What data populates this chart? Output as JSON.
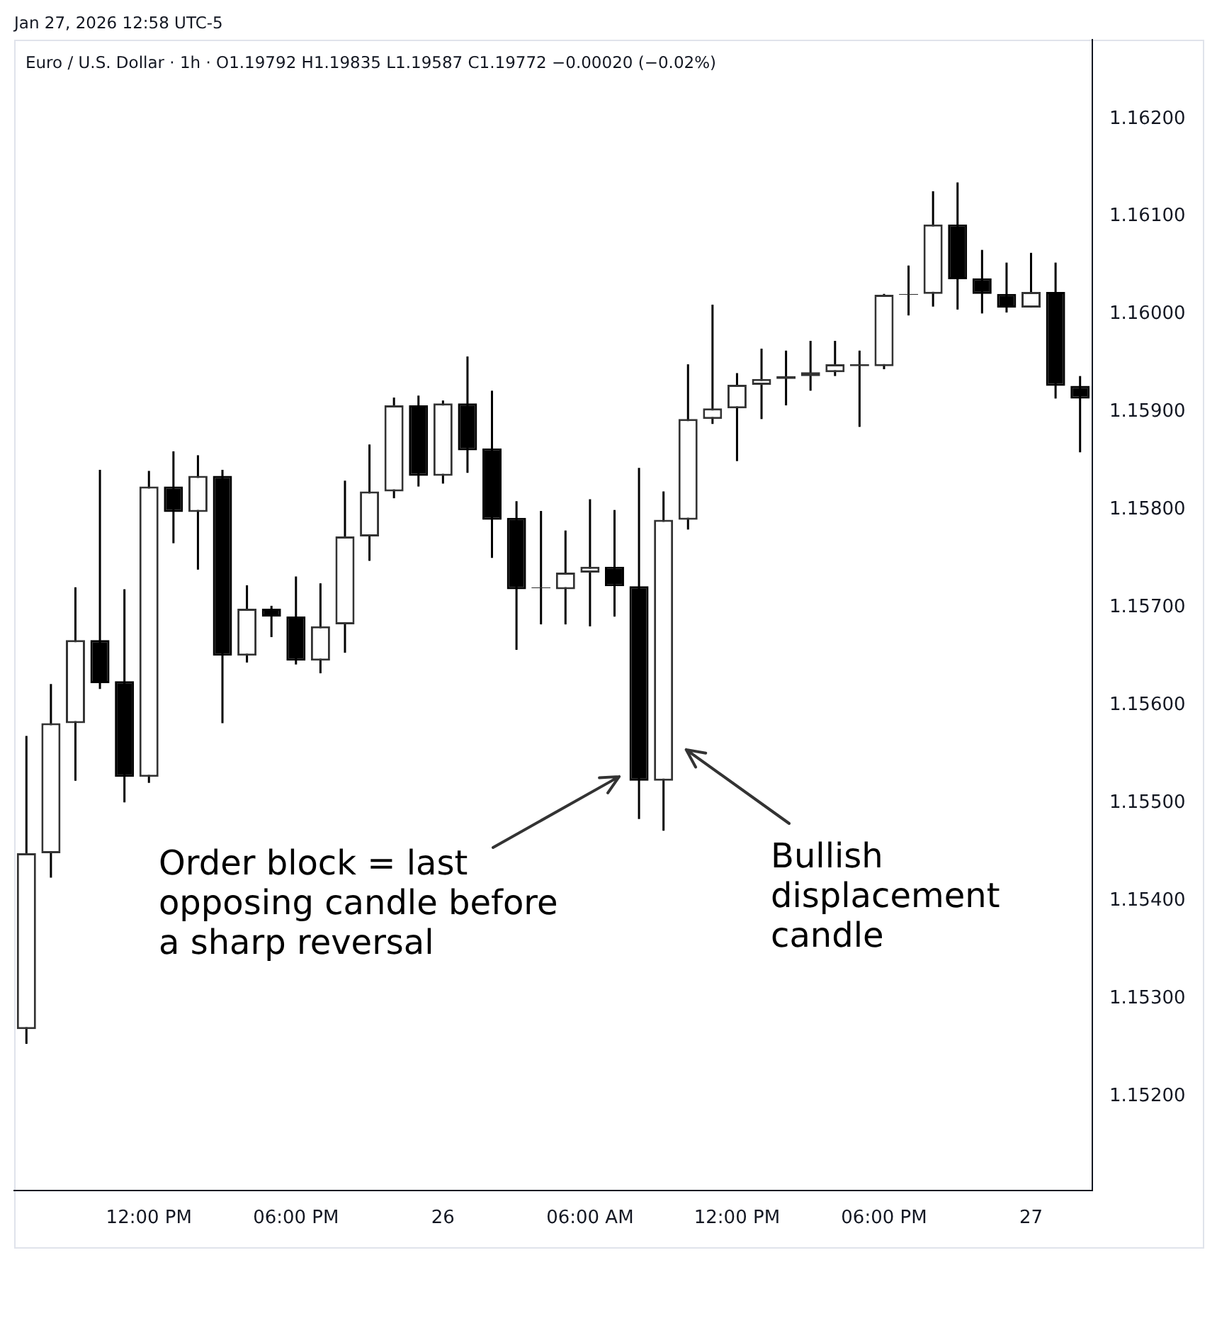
{
  "chart_data": {
    "type": "candlestick",
    "title": "Euro / U.S. Dollar · 1h · O1.19792  H1.19835  L1.19587  C1.19772  −0.00020 (−0.02%)",
    "subtitle": "Jan 27, 2026 12:58 UTC-5",
    "categories": [
      null,
      null,
      null,
      null,
      null,
      "12:00 PM",
      null,
      null,
      null,
      null,
      null,
      "06:00 PM",
      null,
      null,
      null,
      null,
      null,
      "26",
      null,
      null,
      null,
      null,
      null,
      "06:00 AM",
      null,
      null,
      null,
      null,
      null,
      "12:00 PM",
      null,
      null,
      null,
      null,
      null,
      "06:00 PM",
      null,
      null,
      null,
      null,
      null,
      "27",
      null,
      null
    ],
    "ohlc": [
      [
        1.15269,
        1.15569,
        1.15254,
        1.15449
      ],
      [
        1.15449,
        1.15622,
        1.15424,
        1.15582
      ],
      [
        1.15582,
        1.15721,
        1.15523,
        1.15667
      ],
      [
        1.15667,
        1.15841,
        1.15617,
        1.15623
      ],
      [
        1.15625,
        1.15719,
        1.15501,
        1.15527
      ],
      [
        1.15527,
        1.1584,
        1.15521,
        1.15824
      ],
      [
        1.15824,
        1.1586,
        1.15766,
        1.15798
      ],
      [
        1.15798,
        1.15856,
        1.15739,
        1.15835
      ],
      [
        1.15835,
        1.15841,
        1.15582,
        1.15651
      ],
      [
        1.15651,
        1.15723,
        1.15644,
        1.15699
      ],
      [
        1.15699,
        1.15702,
        1.1567,
        1.15691
      ],
      [
        1.15691,
        1.15732,
        1.15642,
        1.15646
      ],
      [
        1.15646,
        1.15725,
        1.15633,
        1.15681
      ],
      [
        1.15683,
        1.1583,
        1.15654,
        1.15773
      ],
      [
        1.15773,
        1.15867,
        1.15748,
        1.15819
      ],
      [
        1.15819,
        1.15915,
        1.15812,
        1.15907
      ],
      [
        1.15907,
        1.15917,
        1.15824,
        1.15835
      ],
      [
        1.15835,
        1.15912,
        1.15827,
        1.15909
      ],
      [
        1.15909,
        1.15957,
        1.15838,
        1.15861
      ],
      [
        1.15863,
        1.15922,
        1.15751,
        1.1579
      ],
      [
        1.15792,
        1.15809,
        1.15657,
        1.15719
      ],
      [
        1.1572,
        1.15799,
        1.15683,
        1.15721
      ],
      [
        1.15719,
        1.15779,
        1.15683,
        1.15736
      ],
      [
        1.15736,
        1.15811,
        1.15681,
        1.15742
      ],
      [
        1.15742,
        1.158,
        1.15691,
        1.15722
      ],
      [
        1.15722,
        1.15843,
        1.15484,
        1.15523
      ],
      [
        1.15523,
        1.15819,
        1.15472,
        1.1579
      ],
      [
        1.1579,
        1.15949,
        1.1578,
        1.15893
      ],
      [
        1.15893,
        1.1601,
        1.15888,
        1.15904
      ],
      [
        1.15904,
        1.1594,
        1.1585,
        1.15928
      ],
      [
        1.15928,
        1.15965,
        1.15893,
        1.15934
      ],
      [
        1.15934,
        1.15963,
        1.15907,
        1.15937
      ],
      [
        1.15937,
        1.15973,
        1.15922,
        1.15941
      ],
      [
        1.15941,
        1.15973,
        1.15937,
        1.15949
      ],
      [
        1.15947,
        1.15963,
        1.15885,
        1.15949
      ],
      [
        1.15947,
        1.16021,
        1.15944,
        1.1602
      ],
      [
        1.1602,
        1.1605,
        1.15999,
        1.16021
      ],
      [
        1.16021,
        1.16126,
        1.16008,
        1.16092
      ],
      [
        1.16092,
        1.16135,
        1.16005,
        1.16036
      ],
      [
        1.16037,
        1.16066,
        1.16001,
        1.16021
      ],
      [
        1.16021,
        1.16053,
        1.16002,
        1.16007
      ],
      [
        1.16007,
        1.16063,
        1.16007,
        1.16023
      ],
      [
        1.16023,
        1.16053,
        1.15914,
        1.15927
      ],
      [
        1.15927,
        1.15937,
        1.15859,
        1.15914
      ]
    ],
    "ylim": [
      1.15104,
      1.16281
    ],
    "yticks": [
      {
        "value": 1.152,
        "label": "1.15200"
      },
      {
        "value": 1.153,
        "label": "1.15300"
      },
      {
        "value": 1.154,
        "label": "1.15400"
      },
      {
        "value": 1.155,
        "label": "1.15500"
      },
      {
        "value": 1.156,
        "label": "1.15600"
      },
      {
        "value": 1.157,
        "label": "1.15700"
      },
      {
        "value": 1.158,
        "label": "1.15800"
      },
      {
        "value": 1.159,
        "label": "1.15900"
      },
      {
        "value": 1.16,
        "label": "1.16000"
      },
      {
        "value": 1.161,
        "label": "1.16100"
      },
      {
        "value": 1.162,
        "label": "1.16200"
      }
    ],
    "annotations": [
      "Order block = last opposing candle before a sharp reversal",
      "Bullish displacement candle"
    ],
    "grid": false,
    "legend": false
  }
}
